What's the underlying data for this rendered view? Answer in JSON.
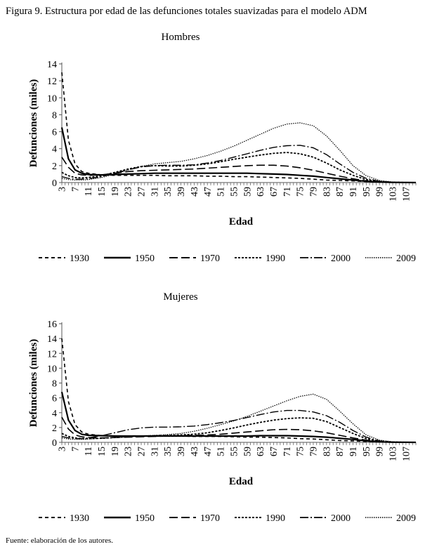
{
  "figure_title": "Figura 9. Estructura por edad de las defunciones totales suavizadas para el modelo ADM",
  "source": "Fuente: elaboración de los autores.",
  "legend_styles": [
    {
      "color": "#000000",
      "dash": "5,4",
      "width": 1.6
    },
    {
      "color": "#000000",
      "dash": "",
      "width": 2.2
    },
    {
      "color": "#000000",
      "dash": "12,5",
      "width": 1.6
    },
    {
      "color": "#000000",
      "dash": "3,2",
      "width": 1.8
    },
    {
      "color": "#000000",
      "dash": "12,3,2,3",
      "width": 1.4
    },
    {
      "color": "#000000",
      "dash": "1.5,1.5",
      "width": 1.2
    }
  ],
  "chart_data": [
    {
      "type": "line",
      "title": "Hombres",
      "xlabel": "Edad",
      "ylabel": "Defunciones (miles)",
      "ylim": [
        0,
        14
      ],
      "yticks": [
        0,
        2,
        4,
        6,
        8,
        10,
        12,
        14
      ],
      "x": [
        3,
        5,
        7,
        9,
        11,
        15,
        19,
        23,
        27,
        31,
        35,
        39,
        43,
        47,
        51,
        55,
        59,
        63,
        67,
        71,
        75,
        79,
        83,
        87,
        91,
        95,
        99,
        103,
        107,
        110
      ],
      "xtick_labels": [
        "3",
        "7",
        "11",
        "15",
        "19",
        "23",
        "27",
        "31",
        "35",
        "39",
        "43",
        "47",
        "51",
        "55",
        "59",
        "63",
        "67",
        "71",
        "75",
        "79",
        "83",
        "87",
        "91",
        "95",
        "99",
        "103",
        "107"
      ],
      "series": [
        {
          "name": "1930",
          "style": 0,
          "values": [
            13.0,
            5.0,
            2.2,
            1.3,
            1.1,
            0.9,
            0.85,
            0.85,
            0.85,
            0.85,
            0.8,
            0.8,
            0.8,
            0.75,
            0.75,
            0.7,
            0.7,
            0.65,
            0.6,
            0.55,
            0.5,
            0.4,
            0.3,
            0.25,
            0.2,
            0.12,
            0.05,
            0.02,
            0.01,
            0
          ]
        },
        {
          "name": "1950",
          "style": 1,
          "values": [
            6.5,
            2.8,
            1.5,
            1.1,
            0.95,
            0.9,
            0.95,
            1.0,
            1.05,
            1.1,
            1.1,
            1.1,
            1.1,
            1.1,
            1.1,
            1.1,
            1.1,
            1.05,
            1.0,
            0.95,
            0.85,
            0.75,
            0.6,
            0.45,
            0.3,
            0.15,
            0.06,
            0.02,
            0.01,
            0
          ]
        },
        {
          "name": "1970",
          "style": 2,
          "values": [
            3.0,
            1.8,
            1.1,
            0.9,
            0.85,
            0.9,
            1.1,
            1.3,
            1.4,
            1.45,
            1.5,
            1.55,
            1.6,
            1.7,
            1.8,
            1.9,
            2.0,
            2.05,
            2.05,
            1.95,
            1.75,
            1.45,
            1.1,
            0.75,
            0.45,
            0.2,
            0.08,
            0.03,
            0.01,
            0
          ]
        },
        {
          "name": "1990",
          "style": 3,
          "values": [
            1.2,
            0.8,
            0.6,
            0.55,
            0.6,
            0.8,
            1.2,
            1.6,
            1.9,
            2.0,
            1.95,
            1.95,
            2.05,
            2.2,
            2.45,
            2.75,
            3.0,
            3.25,
            3.45,
            3.55,
            3.4,
            3.0,
            2.3,
            1.5,
            0.85,
            0.35,
            0.12,
            0.04,
            0.01,
            0
          ]
        },
        {
          "name": "2000",
          "style": 4,
          "values": [
            0.7,
            0.5,
            0.4,
            0.4,
            0.45,
            0.7,
            1.1,
            1.5,
            1.85,
            2.0,
            2.05,
            2.05,
            2.1,
            2.3,
            2.6,
            3.0,
            3.4,
            3.8,
            4.15,
            4.35,
            4.4,
            4.1,
            3.3,
            2.2,
            1.2,
            0.5,
            0.15,
            0.05,
            0.01,
            0
          ]
        },
        {
          "name": "2009",
          "style": 5,
          "values": [
            0.5,
            0.35,
            0.3,
            0.3,
            0.35,
            0.6,
            1.0,
            1.5,
            1.9,
            2.2,
            2.35,
            2.5,
            2.8,
            3.2,
            3.7,
            4.3,
            5.0,
            5.7,
            6.4,
            6.9,
            7.05,
            6.7,
            5.5,
            3.8,
            2.0,
            0.8,
            0.25,
            0.07,
            0.02,
            0
          ]
        }
      ]
    },
    {
      "type": "line",
      "title": "Mujeres",
      "xlabel": "Edad",
      "ylabel": "Defunciones (miles)",
      "ylim": [
        0,
        16
      ],
      "yticks": [
        0,
        2,
        4,
        6,
        8,
        10,
        12,
        14,
        16
      ],
      "x": [
        3,
        5,
        7,
        9,
        11,
        15,
        19,
        23,
        27,
        31,
        35,
        39,
        43,
        47,
        51,
        55,
        59,
        63,
        67,
        71,
        75,
        79,
        83,
        87,
        91,
        95,
        99,
        103,
        107,
        110
      ],
      "xtick_labels": [
        "3",
        "7",
        "11",
        "15",
        "19",
        "23",
        "27",
        "31",
        "35",
        "39",
        "43",
        "47",
        "51",
        "55",
        "59",
        "63",
        "67",
        "71",
        "75",
        "79",
        "83",
        "87",
        "91",
        "95",
        "99",
        "103",
        "107"
      ],
      "series": [
        {
          "name": "1930",
          "style": 0,
          "values": [
            14.0,
            5.5,
            2.4,
            1.4,
            1.1,
            0.9,
            0.85,
            0.85,
            0.85,
            0.85,
            0.85,
            0.85,
            0.8,
            0.8,
            0.8,
            0.75,
            0.7,
            0.7,
            0.65,
            0.6,
            0.5,
            0.45,
            0.35,
            0.25,
            0.2,
            0.12,
            0.05,
            0.02,
            0.01,
            0
          ]
        },
        {
          "name": "1950",
          "style": 1,
          "values": [
            6.8,
            3.0,
            1.6,
            1.1,
            0.95,
            0.9,
            0.85,
            0.85,
            0.85,
            0.85,
            0.85,
            0.85,
            0.85,
            0.85,
            0.85,
            0.85,
            0.85,
            0.9,
            0.9,
            0.9,
            0.85,
            0.8,
            0.7,
            0.55,
            0.4,
            0.2,
            0.07,
            0.02,
            0.01,
            0
          ]
        },
        {
          "name": "1970",
          "style": 2,
          "values": [
            3.4,
            1.8,
            1.0,
            0.75,
            0.65,
            0.6,
            0.65,
            0.7,
            0.75,
            0.8,
            0.85,
            0.9,
            0.95,
            1.0,
            1.1,
            1.25,
            1.4,
            1.55,
            1.7,
            1.75,
            1.7,
            1.55,
            1.3,
            0.95,
            0.6,
            0.3,
            0.1,
            0.03,
            0.01,
            0
          ]
        },
        {
          "name": "1990",
          "style": 3,
          "values": [
            1.2,
            0.8,
            0.6,
            0.5,
            0.5,
            0.55,
            0.65,
            0.75,
            0.85,
            0.9,
            0.95,
            1.0,
            1.1,
            1.3,
            1.6,
            1.95,
            2.35,
            2.7,
            3.0,
            3.2,
            3.3,
            3.25,
            2.8,
            2.0,
            1.2,
            0.5,
            0.15,
            0.05,
            0.01,
            0
          ]
        },
        {
          "name": "2000",
          "style": 4,
          "values": [
            0.8,
            0.6,
            0.5,
            0.5,
            0.6,
            0.9,
            1.3,
            1.7,
            1.95,
            2.05,
            2.05,
            2.1,
            2.2,
            2.4,
            2.65,
            2.95,
            3.35,
            3.75,
            4.1,
            4.3,
            4.3,
            4.1,
            3.6,
            2.7,
            1.6,
            0.7,
            0.2,
            0.06,
            0.01,
            0
          ]
        },
        {
          "name": "2009",
          "style": 5,
          "values": [
            0.6,
            0.45,
            0.4,
            0.4,
            0.45,
            0.55,
            0.65,
            0.75,
            0.85,
            0.95,
            1.05,
            1.2,
            1.5,
            1.9,
            2.4,
            2.9,
            3.5,
            4.2,
            4.9,
            5.6,
            6.2,
            6.5,
            5.8,
            4.2,
            2.5,
            1.0,
            0.3,
            0.08,
            0.02,
            0
          ]
        }
      ]
    }
  ]
}
